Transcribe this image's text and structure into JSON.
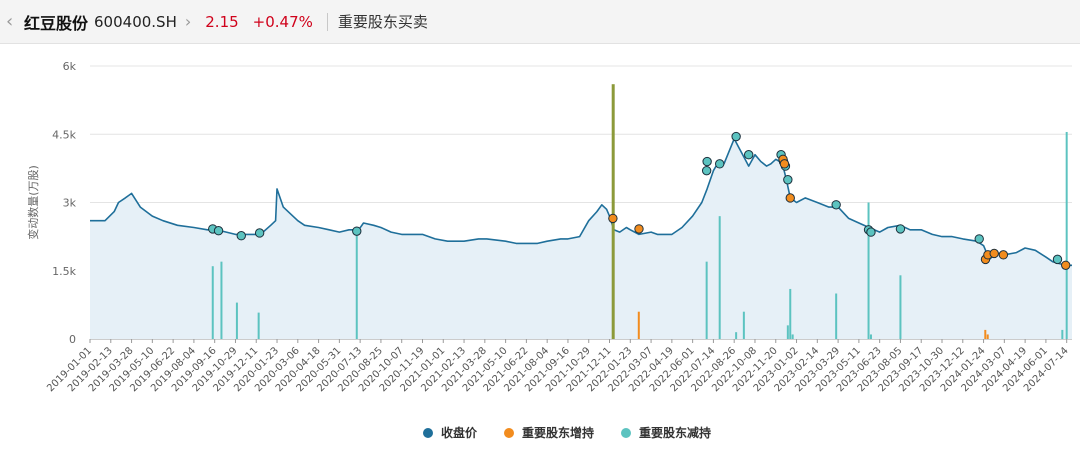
{
  "header": {
    "back_icon": "chevron-left-icon",
    "stock_name": "红豆股份",
    "stock_code": "600400.SH",
    "expand_icon": "chevron-right-icon",
    "price": "2.15",
    "change_pct": "+0.47%",
    "page_label": "重要股东买卖"
  },
  "colors": {
    "line": "#1f6f9a",
    "area": "#e6f0f7",
    "increase": "#f28c1e",
    "decrease": "#5cc3c0",
    "marker_stroke": "#1c2f3c",
    "up_red": "#d0021b",
    "highlight_bar": "#8c9a3a"
  },
  "chart_data": {
    "type": "line",
    "ylabel": "变动数量(万股)",
    "ylim": [
      0,
      6000
    ],
    "y_ticks": [
      "0",
      "1.5k",
      "3k",
      "4.5k",
      "6k"
    ],
    "x_tick_labels": [
      "2019-01-01",
      "2019-02-13",
      "2019-03-28",
      "2019-05-10",
      "2019-06-22",
      "2019-08-04",
      "2019-09-16",
      "2019-10-29",
      "2019-12-11",
      "2020-01-23",
      "2020-03-06",
      "2020-04-18",
      "2020-05-31",
      "2020-07-13",
      "2020-08-25",
      "2020-10-07",
      "2020-11-19",
      "2021-01-01",
      "2021-02-13",
      "2021-03-28",
      "2021-05-10",
      "2021-06-22",
      "2021-08-04",
      "2021-09-16",
      "2021-10-29",
      "2021-12-11",
      "2022-01-23",
      "2022-03-07",
      "2022-04-19",
      "2022-06-01",
      "2022-07-14",
      "2022-08-26",
      "2022-10-08",
      "2022-11-20",
      "2023-01-02",
      "2023-02-14",
      "2023-03-29",
      "2023-05-11",
      "2023-06-23",
      "2023-08-05",
      "2023-09-17",
      "2023-10-30",
      "2023-12-12",
      "2024-01-24",
      "2024-03-07",
      "2024-04-19",
      "2024-06-01",
      "2024-07-14"
    ],
    "legend": [
      "收盘价",
      "重要股东增持",
      "重要股东减持"
    ],
    "legend_position": "bottom",
    "grid": true,
    "series": [
      {
        "name": "收盘价",
        "x": [
          "2019-01-01",
          "2019-02-01",
          "2019-02-20",
          "2019-03-01",
          "2019-03-15",
          "2019-03-28",
          "2019-04-15",
          "2019-05-10",
          "2019-06-01",
          "2019-07-01",
          "2019-08-04",
          "2019-09-01",
          "2019-09-20",
          "2019-10-10",
          "2019-10-29",
          "2019-11-20",
          "2019-12-11",
          "2019-12-25",
          "2020-01-10",
          "2020-01-20",
          "2020-01-23",
          "2020-02-05",
          "2020-02-20",
          "2020-03-06",
          "2020-03-20",
          "2020-04-18",
          "2020-05-10",
          "2020-05-31",
          "2020-06-20",
          "2020-07-10",
          "2020-07-20",
          "2020-08-10",
          "2020-08-25",
          "2020-09-15",
          "2020-10-07",
          "2020-10-30",
          "2020-11-19",
          "2020-12-15",
          "2021-01-10",
          "2021-02-05",
          "2021-02-13",
          "2021-03-15",
          "2021-04-01",
          "2021-05-10",
          "2021-06-01",
          "2021-06-22",
          "2021-07-15",
          "2021-08-04",
          "2021-09-01",
          "2021-09-16",
          "2021-10-10",
          "2021-10-29",
          "2021-11-15",
          "2021-11-25",
          "2021-12-05",
          "2021-12-11",
          "2021-12-20",
          "2022-01-01",
          "2022-01-15",
          "2022-01-23",
          "2022-02-10",
          "2022-03-07",
          "2022-03-20",
          "2022-04-19",
          "2022-05-10",
          "2022-06-01",
          "2022-06-20",
          "2022-07-01",
          "2022-07-14",
          "2022-07-25",
          "2022-08-05",
          "2022-08-26",
          "2022-09-05",
          "2022-09-15",
          "2022-09-25",
          "2022-10-08",
          "2022-10-20",
          "2022-11-01",
          "2022-11-10",
          "2022-11-20",
          "2022-11-28",
          "2022-12-05",
          "2022-12-12",
          "2022-12-20",
          "2023-01-02",
          "2023-01-20",
          "2023-02-14",
          "2023-03-10",
          "2023-03-29",
          "2023-04-20",
          "2023-05-11",
          "2023-06-01",
          "2023-06-23",
          "2023-07-10",
          "2023-08-05",
          "2023-08-25",
          "2023-09-17",
          "2023-10-10",
          "2023-10-30",
          "2023-11-20",
          "2023-12-12",
          "2024-01-10",
          "2024-01-24",
          "2024-02-05",
          "2024-02-20",
          "2024-03-07",
          "2024-04-01",
          "2024-04-19",
          "2024-05-10",
          "2024-06-01",
          "2024-06-15",
          "2024-07-01",
          "2024-07-14",
          "2024-07-25"
        ],
        "values": [
          2.6,
          2.6,
          2.8,
          3.0,
          3.1,
          3.2,
          2.9,
          2.7,
          2.6,
          2.5,
          2.45,
          2.4,
          2.4,
          2.35,
          2.3,
          2.3,
          2.3,
          2.35,
          2.5,
          2.6,
          3.3,
          2.9,
          2.75,
          2.6,
          2.5,
          2.45,
          2.4,
          2.35,
          2.4,
          2.4,
          2.55,
          2.5,
          2.45,
          2.35,
          2.3,
          2.3,
          2.3,
          2.2,
          2.15,
          2.15,
          2.15,
          2.2,
          2.2,
          2.15,
          2.1,
          2.1,
          2.1,
          2.15,
          2.2,
          2.2,
          2.25,
          2.6,
          2.8,
          2.95,
          2.85,
          2.7,
          2.4,
          2.35,
          2.45,
          2.4,
          2.3,
          2.35,
          2.3,
          2.3,
          2.45,
          2.7,
          3.0,
          3.3,
          3.7,
          3.9,
          3.85,
          4.4,
          4.2,
          4.0,
          3.8,
          4.05,
          3.9,
          3.8,
          3.85,
          3.95,
          3.9,
          3.8,
          3.5,
          3.1,
          3.0,
          3.1,
          3.0,
          2.9,
          2.9,
          2.65,
          2.55,
          2.45,
          2.35,
          2.45,
          2.5,
          2.4,
          2.4,
          2.3,
          2.25,
          2.25,
          2.2,
          2.15,
          2.05,
          1.75,
          1.9,
          1.85,
          1.9,
          2.0,
          1.95,
          1.8,
          1.7,
          1.65,
          1.62,
          1.62
        ]
      },
      {
        "name": "重要股东增持",
        "bars": [
          {
            "date": "2021-12-18",
            "value": 5600,
            "highlight": true
          },
          {
            "date": "2022-02-10",
            "value": 600
          },
          {
            "date": "2024-01-28",
            "value": 200
          },
          {
            "date": "2024-02-02",
            "value": 100
          }
        ],
        "points": [
          {
            "date": "2021-12-18",
            "value": 2.65
          },
          {
            "date": "2022-02-10",
            "value": 2.42
          },
          {
            "date": "2022-12-05",
            "value": 3.95
          },
          {
            "date": "2022-12-08",
            "value": 3.85
          },
          {
            "date": "2022-12-20",
            "value": 3.1
          },
          {
            "date": "2024-01-28",
            "value": 1.75
          },
          {
            "date": "2024-02-02",
            "value": 1.85
          },
          {
            "date": "2024-02-15",
            "value": 1.88
          },
          {
            "date": "2024-03-05",
            "value": 1.85
          },
          {
            "date": "2024-07-12",
            "value": 1.62
          }
        ]
      },
      {
        "name": "重要股东减持",
        "bars": [
          {
            "date": "2019-09-12",
            "value": 1600
          },
          {
            "date": "2019-09-30",
            "value": 1700
          },
          {
            "date": "2019-11-01",
            "value": 800
          },
          {
            "date": "2019-12-16",
            "value": 580
          },
          {
            "date": "2020-07-06",
            "value": 2300
          },
          {
            "date": "2022-06-30",
            "value": 1700
          },
          {
            "date": "2022-07-27",
            "value": 2700
          },
          {
            "date": "2022-08-30",
            "value": 150
          },
          {
            "date": "2022-09-15",
            "value": 600
          },
          {
            "date": "2022-12-15",
            "value": 300
          },
          {
            "date": "2022-12-20",
            "value": 1100
          },
          {
            "date": "2022-12-25",
            "value": 100
          },
          {
            "date": "2023-03-25",
            "value": 1000
          },
          {
            "date": "2023-05-31",
            "value": 3000
          },
          {
            "date": "2023-06-05",
            "value": 100
          },
          {
            "date": "2023-08-05",
            "value": 1400
          },
          {
            "date": "2024-07-05",
            "value": 200
          },
          {
            "date": "2024-07-14",
            "value": 4550
          }
        ],
        "points": [
          {
            "date": "2019-09-12",
            "value": 2.42
          },
          {
            "date": "2019-09-24",
            "value": 2.38
          },
          {
            "date": "2019-11-10",
            "value": 2.27
          },
          {
            "date": "2019-12-18",
            "value": 2.33
          },
          {
            "date": "2020-07-06",
            "value": 2.37
          },
          {
            "date": "2022-06-30",
            "value": 3.7
          },
          {
            "date": "2022-07-01",
            "value": 3.9
          },
          {
            "date": "2022-07-27",
            "value": 3.85
          },
          {
            "date": "2022-08-30",
            "value": 4.45
          },
          {
            "date": "2022-09-25",
            "value": 4.05
          },
          {
            "date": "2022-12-01",
            "value": 4.05
          },
          {
            "date": "2022-12-06",
            "value": 3.9
          },
          {
            "date": "2022-12-10",
            "value": 3.8
          },
          {
            "date": "2022-12-15",
            "value": 3.5
          },
          {
            "date": "2023-03-25",
            "value": 2.95
          },
          {
            "date": "2023-05-31",
            "value": 2.4
          },
          {
            "date": "2023-06-05",
            "value": 2.35
          },
          {
            "date": "2023-08-05",
            "value": 2.42
          },
          {
            "date": "2024-01-15",
            "value": 2.2
          },
          {
            "date": "2024-06-25",
            "value": 1.75
          }
        ]
      }
    ]
  }
}
